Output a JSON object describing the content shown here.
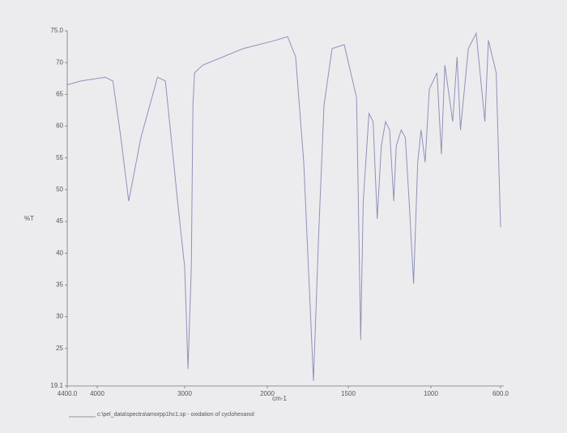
{
  "chart_data": {
    "type": "line",
    "y_label": "%T",
    "x_label": "cm-1",
    "footer": "c:\\pel_data\\spectra\\amorpp1hc1.sp - oxidation of cyclohexanol",
    "color": "#8e92b8",
    "x": [
      4400,
      4220,
      3910,
      3820,
      3730,
      3640,
      3500,
      3310,
      3220,
      3080,
      3000,
      2960,
      2920,
      2900,
      2880,
      2780,
      2290,
      1950,
      1875,
      1825,
      1775,
      1715,
      1685,
      1650,
      1600,
      1525,
      1450,
      1425,
      1410,
      1375,
      1350,
      1325,
      1300,
      1275,
      1250,
      1225,
      1210,
      1180,
      1155,
      1130,
      1105,
      1080,
      1060,
      1035,
      1010,
      965,
      940,
      920,
      875,
      850,
      830,
      785,
      740,
      690,
      670,
      625,
      600
    ],
    "values": [
      66.5,
      67.1,
      67.7,
      67.1,
      58.2,
      48.2,
      58.2,
      67.7,
      67.1,
      48.0,
      37.8,
      21.8,
      37.8,
      63.3,
      68.4,
      69.6,
      72.2,
      73.5,
      74.1,
      70.9,
      54.3,
      19.9,
      41.6,
      63.3,
      72.2,
      72.8,
      64.5,
      26.3,
      48.0,
      62.0,
      60.7,
      45.4,
      56.9,
      60.7,
      59.4,
      48.2,
      56.9,
      59.4,
      58.2,
      47.3,
      35.2,
      54.3,
      59.4,
      54.3,
      65.8,
      68.4,
      55.6,
      69.6,
      60.7,
      70.9,
      59.4,
      72.2,
      74.6,
      60.7,
      73.5,
      68.4,
      44.1
    ],
    "xlim": [
      4400,
      600
    ],
    "ylim": [
      19.1,
      75
    ],
    "xticks": [
      {
        "value": 4400,
        "label": "4400.0"
      },
      4000,
      3000,
      2000,
      1500,
      1000,
      {
        "value": 600,
        "label": "600.0"
      }
    ],
    "yticks": [
      {
        "value": 75,
        "label": "75.0"
      },
      70,
      65,
      60,
      55,
      50,
      45,
      40,
      35,
      30,
      25,
      19.1
    ]
  }
}
